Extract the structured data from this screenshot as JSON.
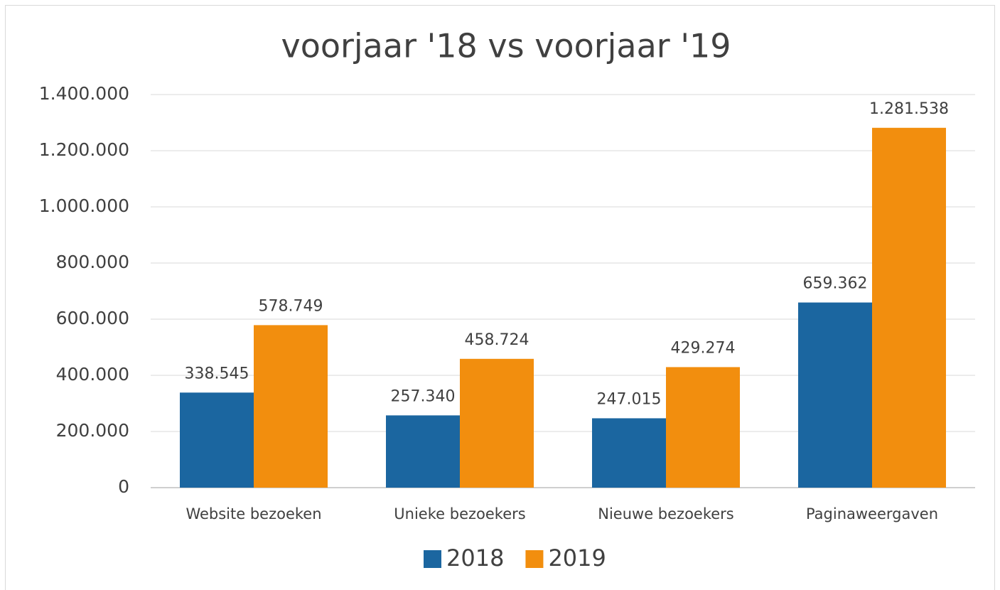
{
  "chart_data": {
    "type": "bar",
    "title": "voorjaar '18 vs voorjaar '19",
    "categories": [
      "Website bezoeken",
      "Unieke bezoekers",
      "Nieuwe bezoekers",
      "Paginaweergaven"
    ],
    "series": [
      {
        "name": "2018",
        "color": "#1b66a0",
        "values": [
          338545,
          257340,
          247015,
          659362
        ],
        "value_labels": [
          "338.545",
          "257.340",
          "247.015",
          "659.362"
        ]
      },
      {
        "name": "2019",
        "color": "#f28e0e",
        "values": [
          578749,
          458724,
          429274,
          1281538
        ],
        "value_labels": [
          "578.749",
          "458.724",
          "429.274",
          "1.281.538"
        ]
      }
    ],
    "ylim": [
      0,
      1400000
    ],
    "yticks": [
      0,
      {
        "value": 200000,
        "label": "200.000"
      },
      {
        "value": 400000,
        "label": "400.000"
      },
      {
        "value": 600000,
        "label": "600.000"
      },
      {
        "value": 800000,
        "label": "800.000"
      },
      {
        "value": 1000000,
        "label": "1.000.000"
      },
      {
        "value": 1200000,
        "label": "1.200.000"
      },
      {
        "value": 1400000,
        "label": "1.400.000"
      }
    ],
    "grid": true,
    "legend": "bottom"
  }
}
